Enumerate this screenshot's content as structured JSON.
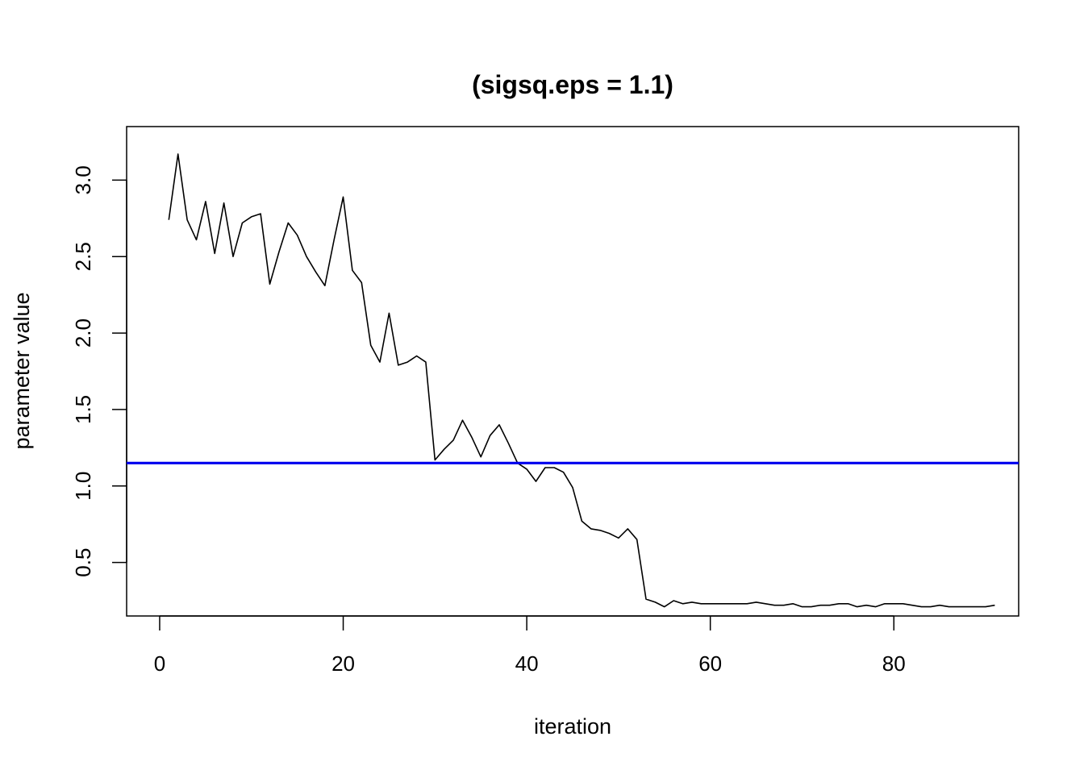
{
  "chart_data": {
    "type": "line",
    "title": "(sigsq.eps = 1.1)",
    "xlabel": "iteration",
    "ylabel": "parameter value",
    "xlim": [
      -3.6,
      93.6
    ],
    "ylim": [
      0.15,
      3.35
    ],
    "xticks": [
      0,
      20,
      40,
      60,
      80
    ],
    "yticks": [
      0.5,
      1.0,
      1.5,
      2.0,
      2.5,
      3.0
    ],
    "xtick_labels": [
      "0",
      "20",
      "40",
      "60",
      "80"
    ],
    "ytick_labels": [
      "0.5",
      "1.0",
      "1.5",
      "2.0",
      "2.5",
      "3.0"
    ],
    "grid": false,
    "series": [
      {
        "color": "#000000",
        "x": [
          1,
          2,
          3,
          4,
          5,
          6,
          7,
          8,
          9,
          10,
          11,
          12,
          13,
          14,
          15,
          16,
          17,
          18,
          19,
          20,
          21,
          22,
          23,
          24,
          25,
          26,
          27,
          28,
          29,
          30,
          31,
          32,
          33,
          34,
          35,
          36,
          37,
          38,
          39,
          40,
          41,
          42,
          43,
          44,
          45,
          46,
          47,
          48,
          49,
          50,
          51,
          52,
          53,
          54,
          55,
          56,
          57,
          58,
          59,
          60,
          61,
          62,
          63,
          64,
          65,
          66,
          67,
          68,
          69,
          70,
          71,
          72,
          73,
          74,
          75,
          76,
          77,
          78,
          79,
          80,
          81,
          82,
          83,
          84,
          85,
          86,
          87,
          88,
          89,
          90,
          91
        ],
        "y": [
          2.74,
          3.17,
          2.74,
          2.61,
          2.86,
          2.52,
          2.85,
          2.5,
          2.72,
          2.76,
          2.78,
          2.32,
          2.53,
          2.72,
          2.64,
          2.5,
          2.4,
          2.31,
          2.61,
          2.89,
          2.41,
          2.33,
          1.92,
          1.81,
          2.13,
          1.79,
          1.81,
          1.85,
          1.81,
          1.17,
          1.24,
          1.3,
          1.43,
          1.32,
          1.19,
          1.33,
          1.4,
          1.28,
          1.15,
          1.11,
          1.03,
          1.12,
          1.12,
          1.09,
          0.99,
          0.77,
          0.72,
          0.71,
          0.69,
          0.66,
          0.72,
          0.65,
          0.26,
          0.24,
          0.21,
          0.25,
          0.23,
          0.24,
          0.23,
          0.23,
          0.23,
          0.23,
          0.23,
          0.23,
          0.24,
          0.23,
          0.22,
          0.22,
          0.23,
          0.21,
          0.21,
          0.22,
          0.22,
          0.23,
          0.23,
          0.21,
          0.22,
          0.21,
          0.23,
          0.23,
          0.23,
          0.22,
          0.21,
          0.21,
          0.22,
          0.21,
          0.21,
          0.21,
          0.21,
          0.21,
          0.22
        ]
      }
    ],
    "reference_line": {
      "orientation": "horizontal",
      "y": 1.15,
      "color": "#0000ee"
    }
  }
}
